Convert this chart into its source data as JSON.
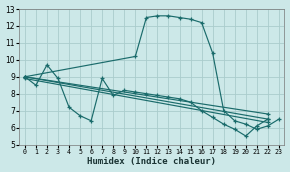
{
  "xlabel": "Humidex (Indice chaleur)",
  "background_color": "#cce8e8",
  "grid_color": "#aacccc",
  "line_color": "#1a6b6b",
  "xlim": [
    -0.5,
    23.5
  ],
  "ylim": [
    5,
    13
  ],
  "xticks": [
    0,
    1,
    2,
    3,
    4,
    5,
    6,
    7,
    8,
    9,
    10,
    11,
    12,
    13,
    14,
    15,
    16,
    17,
    18,
    19,
    20,
    21,
    22,
    23
  ],
  "yticks": [
    5,
    6,
    7,
    8,
    9,
    10,
    11,
    12,
    13
  ],
  "series": [
    {
      "x": [
        0,
        1,
        2,
        3,
        4,
        5,
        6,
        7,
        8,
        9,
        10,
        11,
        12,
        13,
        14,
        15,
        16,
        17,
        18,
        19,
        20,
        21,
        22
      ],
      "y": [
        9.0,
        8.5,
        9.7,
        8.9,
        7.2,
        6.7,
        6.4,
        8.9,
        7.9,
        8.2,
        8.1,
        8.0,
        7.9,
        7.8,
        7.7,
        7.5,
        7.0,
        6.6,
        6.2,
        5.9,
        5.5,
        6.1,
        6.5
      ]
    },
    {
      "x": [
        0,
        10,
        11,
        12,
        13,
        14,
        15,
        16,
        17,
        18,
        19,
        20,
        21,
        22,
        23
      ],
      "y": [
        9.0,
        10.2,
        12.5,
        12.6,
        12.6,
        12.5,
        12.4,
        12.2,
        10.4,
        7.0,
        6.4,
        6.2,
        5.9,
        6.1,
        6.5
      ]
    },
    {
      "x": [
        0,
        22
      ],
      "y": [
        9.0,
        6.5
      ]
    },
    {
      "x": [
        0,
        22
      ],
      "y": [
        8.9,
        6.3
      ]
    },
    {
      "x": [
        0,
        22
      ],
      "y": [
        9.0,
        6.8
      ]
    }
  ]
}
